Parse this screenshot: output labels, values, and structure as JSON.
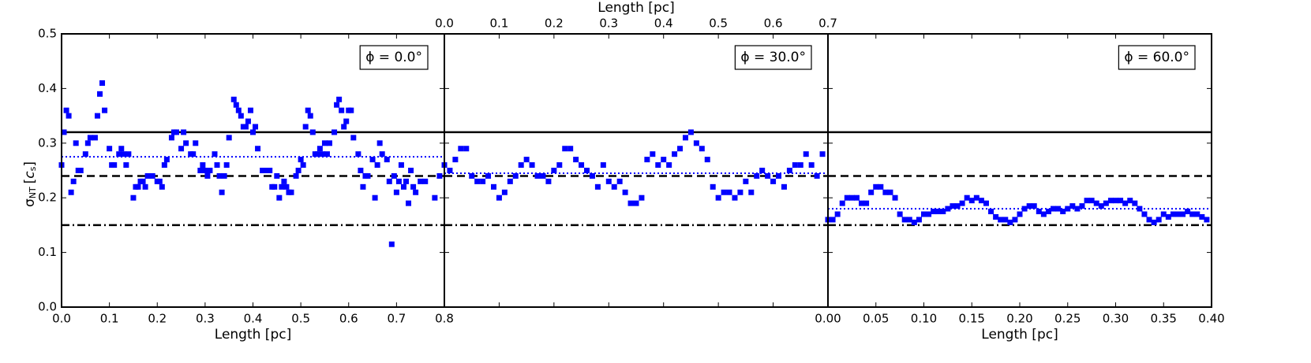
{
  "chart_data": [
    {
      "type": "scatter",
      "color": "#0000ff",
      "y_label": {
        "symbol": "σ",
        "sub": "NT",
        "unit_open": "[",
        "unit": "c",
        "unit_sub": "s",
        "unit_close": "]"
      },
      "x_label": "Length [pc]",
      "xaxis_position": "bottom",
      "annotation": "ϕ = 0.0°",
      "xlim": [
        0,
        0.8
      ],
      "ylim": [
        0,
        0.5
      ],
      "xticks": [
        {
          "value": 0,
          "label": "0.0"
        },
        0.1,
        0.2,
        0.3,
        0.4,
        0.5,
        0.6,
        0.7,
        0.8
      ],
      "yticks": [
        {
          "value": 0,
          "label": "0.0"
        },
        0.1,
        0.2,
        0.3,
        0.4,
        0.5
      ],
      "hlines": [
        {
          "value": 0.32,
          "style": "solid",
          "color": "#000000"
        },
        {
          "value": 0.24,
          "style": "dashed",
          "color": "#000000"
        },
        {
          "value": 0.15,
          "style": "dashdot",
          "color": "#000000"
        },
        {
          "value": 0.275,
          "style": "dotted",
          "color": "#0000ff"
        }
      ],
      "x": [
        0,
        0.005,
        0.01,
        0.015,
        0.02,
        0.025,
        0.03,
        0.035,
        0.04,
        0.05,
        0.055,
        0.06,
        0.07,
        0.075,
        0.08,
        0.085,
        0.09,
        0.1,
        0.105,
        0.11,
        0.12,
        0.125,
        0.13,
        0.135,
        0.14,
        0.15,
        0.155,
        0.16,
        0.165,
        0.17,
        0.175,
        0.18,
        0.19,
        0.2,
        0.205,
        0.21,
        0.215,
        0.22,
        0.23,
        0.235,
        0.24,
        0.25,
        0.255,
        0.26,
        0.27,
        0.275,
        0.28,
        0.29,
        0.295,
        0.3,
        0.305,
        0.31,
        0.32,
        0.325,
        0.33,
        0.335,
        0.34,
        0.345,
        0.35,
        0.36,
        0.365,
        0.37,
        0.375,
        0.38,
        0.385,
        0.39,
        0.395,
        0.4,
        0.405,
        0.41,
        0.42,
        0.425,
        0.43,
        0.435,
        0.44,
        0.445,
        0.45,
        0.455,
        0.46,
        0.465,
        0.47,
        0.475,
        0.48,
        0.49,
        0.495,
        0.5,
        0.505,
        0.51,
        0.515,
        0.52,
        0.525,
        0.53,
        0.535,
        0.54,
        0.545,
        0.55,
        0.555,
        0.56,
        0.57,
        0.575,
        0.58,
        0.585,
        0.59,
        0.595,
        0.6,
        0.605,
        0.61,
        0.62,
        0.625,
        0.63,
        0.635,
        0.64,
        0.65,
        0.655,
        0.66,
        0.665,
        0.67,
        0.68,
        0.685,
        0.69,
        0.695,
        0.7,
        0.705,
        0.71,
        0.715,
        0.72,
        0.725,
        0.73,
        0.735,
        0.74,
        0.75,
        0.76,
        0.78,
        0.79
      ],
      "values": [
        0.26,
        0.32,
        0.36,
        0.35,
        0.21,
        0.23,
        0.3,
        0.25,
        0.25,
        0.28,
        0.3,
        0.31,
        0.31,
        0.35,
        0.39,
        0.41,
        0.36,
        0.29,
        0.26,
        0.26,
        0.28,
        0.29,
        0.28,
        0.26,
        0.28,
        0.2,
        0.22,
        0.22,
        0.23,
        0.23,
        0.22,
        0.24,
        0.24,
        0.23,
        0.23,
        0.22,
        0.26,
        0.27,
        0.31,
        0.32,
        0.32,
        0.29,
        0.32,
        0.3,
        0.28,
        0.28,
        0.3,
        0.25,
        0.26,
        0.25,
        0.24,
        0.25,
        0.28,
        0.26,
        0.24,
        0.21,
        0.24,
        0.26,
        0.31,
        0.38,
        0.37,
        0.36,
        0.35,
        0.33,
        0.33,
        0.34,
        0.36,
        0.32,
        0.33,
        0.29,
        0.25,
        0.25,
        0.25,
        0.25,
        0.22,
        0.22,
        0.24,
        0.2,
        0.22,
        0.23,
        0.22,
        0.21,
        0.21,
        0.24,
        0.25,
        0.27,
        0.26,
        0.33,
        0.36,
        0.35,
        0.32,
        0.28,
        0.28,
        0.29,
        0.28,
        0.3,
        0.28,
        0.3,
        0.32,
        0.37,
        0.38,
        0.36,
        0.33,
        0.34,
        0.36,
        0.36,
        0.31,
        0.28,
        0.25,
        0.22,
        0.24,
        0.24,
        0.27,
        0.2,
        0.26,
        0.3,
        0.28,
        0.27,
        0.23,
        0.115,
        0.24,
        0.21,
        0.23,
        0.26,
        0.22,
        0.23,
        0.19,
        0.25,
        0.22,
        0.21,
        0.23,
        0.23,
        0.2,
        0.24
      ]
    },
    {
      "type": "scatter",
      "color": "#0000ff",
      "x_label": "Length [pc]",
      "xaxis_position": "top",
      "annotation": "ϕ = 30.0°",
      "xlim": [
        0,
        0.7
      ],
      "ylim": [
        0,
        0.5
      ],
      "xticks": [
        {
          "value": 0,
          "label": "0.0"
        },
        0.1,
        0.2,
        0.3,
        0.4,
        0.5,
        0.6,
        0.7
      ],
      "hlines": [
        {
          "value": 0.32,
          "style": "solid",
          "color": "#000000"
        },
        {
          "value": 0.24,
          "style": "dashed",
          "color": "#000000"
        },
        {
          "value": 0.15,
          "style": "dashdot",
          "color": "#000000"
        },
        {
          "value": 0.245,
          "style": "dotted",
          "color": "#0000ff"
        }
      ],
      "x": [
        0,
        0.01,
        0.02,
        0.03,
        0.04,
        0.05,
        0.06,
        0.07,
        0.08,
        0.09,
        0.1,
        0.11,
        0.12,
        0.13,
        0.14,
        0.15,
        0.16,
        0.17,
        0.18,
        0.19,
        0.2,
        0.21,
        0.22,
        0.23,
        0.24,
        0.25,
        0.26,
        0.27,
        0.28,
        0.29,
        0.3,
        0.31,
        0.32,
        0.33,
        0.34,
        0.35,
        0.36,
        0.37,
        0.38,
        0.39,
        0.4,
        0.41,
        0.42,
        0.43,
        0.44,
        0.45,
        0.46,
        0.47,
        0.48,
        0.49,
        0.5,
        0.51,
        0.52,
        0.53,
        0.54,
        0.55,
        0.56,
        0.57,
        0.58,
        0.59,
        0.6,
        0.61,
        0.62,
        0.63,
        0.64,
        0.65,
        0.66,
        0.67,
        0.68,
        0.69
      ],
      "values": [
        0.26,
        0.25,
        0.27,
        0.29,
        0.29,
        0.24,
        0.23,
        0.23,
        0.24,
        0.22,
        0.2,
        0.21,
        0.23,
        0.24,
        0.26,
        0.27,
        0.26,
        0.24,
        0.24,
        0.23,
        0.25,
        0.26,
        0.29,
        0.29,
        0.27,
        0.26,
        0.25,
        0.24,
        0.22,
        0.26,
        0.23,
        0.22,
        0.23,
        0.21,
        0.19,
        0.19,
        0.2,
        0.27,
        0.28,
        0.26,
        0.27,
        0.26,
        0.28,
        0.29,
        0.31,
        0.32,
        0.3,
        0.29,
        0.27,
        0.22,
        0.2,
        0.21,
        0.21,
        0.2,
        0.21,
        0.23,
        0.21,
        0.24,
        0.25,
        0.24,
        0.23,
        0.24,
        0.22,
        0.25,
        0.26,
        0.26,
        0.28,
        0.26,
        0.24,
        0.28
      ]
    },
    {
      "type": "scatter",
      "color": "#0000ff",
      "x_label": "Length [pc]",
      "xaxis_position": "bottom",
      "annotation": "ϕ = 60.0°",
      "xlim": [
        0,
        0.4
      ],
      "ylim": [
        0,
        0.5
      ],
      "xticks": [
        {
          "value": 0,
          "label": "0.00"
        },
        0.05,
        {
          "value": 0.1,
          "label": "0.10"
        },
        0.15,
        {
          "value": 0.2,
          "label": "0.20"
        },
        0.25,
        {
          "value": 0.3,
          "label": "0.30"
        },
        0.35,
        {
          "value": 0.4,
          "label": "0.40"
        }
      ],
      "hlines": [
        {
          "value": 0.32,
          "style": "solid",
          "color": "#000000"
        },
        {
          "value": 0.24,
          "style": "dashed",
          "color": "#000000"
        },
        {
          "value": 0.15,
          "style": "dashdot",
          "color": "#000000"
        },
        {
          "value": 0.18,
          "style": "dotted",
          "color": "#0000ff"
        }
      ],
      "x": [
        0,
        0.005,
        0.01,
        0.015,
        0.02,
        0.025,
        0.03,
        0.035,
        0.04,
        0.045,
        0.05,
        0.055,
        0.06,
        0.065,
        0.07,
        0.075,
        0.08,
        0.085,
        0.09,
        0.095,
        0.1,
        0.105,
        0.11,
        0.115,
        0.12,
        0.125,
        0.13,
        0.135,
        0.14,
        0.145,
        0.15,
        0.155,
        0.16,
        0.165,
        0.17,
        0.175,
        0.18,
        0.185,
        0.19,
        0.195,
        0.2,
        0.205,
        0.21,
        0.215,
        0.22,
        0.225,
        0.23,
        0.235,
        0.24,
        0.245,
        0.25,
        0.255,
        0.26,
        0.265,
        0.27,
        0.275,
        0.28,
        0.285,
        0.29,
        0.295,
        0.3,
        0.305,
        0.31,
        0.315,
        0.32,
        0.325,
        0.33,
        0.335,
        0.34,
        0.345,
        0.35,
        0.355,
        0.36,
        0.365,
        0.37,
        0.375,
        0.38,
        0.385,
        0.39,
        0.395
      ],
      "values": [
        0.16,
        0.16,
        0.17,
        0.19,
        0.2,
        0.2,
        0.2,
        0.19,
        0.19,
        0.21,
        0.22,
        0.22,
        0.21,
        0.21,
        0.2,
        0.17,
        0.16,
        0.16,
        0.155,
        0.16,
        0.17,
        0.17,
        0.175,
        0.175,
        0.175,
        0.18,
        0.185,
        0.185,
        0.19,
        0.2,
        0.195,
        0.2,
        0.195,
        0.19,
        0.175,
        0.165,
        0.16,
        0.16,
        0.155,
        0.16,
        0.17,
        0.18,
        0.185,
        0.185,
        0.175,
        0.17,
        0.175,
        0.18,
        0.18,
        0.175,
        0.18,
        0.185,
        0.18,
        0.185,
        0.195,
        0.195,
        0.19,
        0.185,
        0.19,
        0.195,
        0.195,
        0.195,
        0.19,
        0.195,
        0.19,
        0.18,
        0.17,
        0.16,
        0.155,
        0.16,
        0.17,
        0.165,
        0.17,
        0.17,
        0.17,
        0.175,
        0.17,
        0.17,
        0.165,
        0.16
      ]
    }
  ]
}
